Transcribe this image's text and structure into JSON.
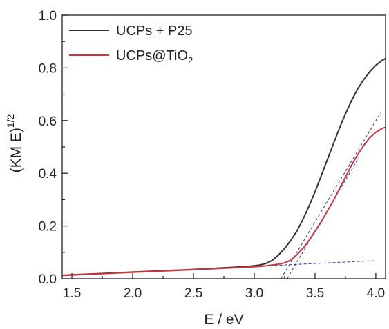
{
  "chart_data": {
    "type": "line",
    "title": "",
    "xlabel": "E / eV",
    "ylabel": {
      "base": "(KM E)",
      "sup": "1/2"
    },
    "xlim": [
      1.42,
      4.08
    ],
    "ylim": [
      0.0,
      1.0
    ],
    "x_ticks": [
      1.5,
      2.0,
      2.5,
      3.0,
      3.5,
      4.0
    ],
    "x_tick_labels": [
      "1.5",
      "2.0",
      "2.5",
      "3.0",
      "3.5",
      "4.0"
    ],
    "y_ticks": [
      0.0,
      0.2,
      0.4,
      0.6,
      0.8,
      1.0
    ],
    "y_tick_labels": [
      "0.0",
      "0.2",
      "0.4",
      "0.6",
      "0.8",
      "1.0"
    ],
    "grid": false,
    "legend_position": "top-left",
    "series": [
      {
        "name": "UCPs + P25",
        "legend": {
          "base": "UCPs + P25",
          "sub": ""
        },
        "color": "#333333",
        "x": [
          1.42,
          2.0,
          2.5,
          2.9,
          3.0,
          3.05,
          3.1,
          3.15,
          3.2,
          3.25,
          3.3,
          3.35,
          3.4,
          3.45,
          3.5,
          3.55,
          3.6,
          3.65,
          3.7,
          3.75,
          3.8,
          3.85,
          3.9,
          3.95,
          4.0,
          4.05,
          4.08
        ],
        "y": [
          0.013,
          0.025,
          0.035,
          0.045,
          0.049,
          0.052,
          0.058,
          0.07,
          0.09,
          0.115,
          0.145,
          0.18,
          0.225,
          0.275,
          0.33,
          0.39,
          0.45,
          0.51,
          0.57,
          0.625,
          0.675,
          0.72,
          0.755,
          0.785,
          0.81,
          0.828,
          0.835
        ]
      },
      {
        "name": "UCPs@TiO2",
        "legend": {
          "base": "UCPs@TiO",
          "sub": "2"
        },
        "color": "#d0333f",
        "x": [
          1.42,
          2.0,
          2.5,
          3.0,
          3.1,
          3.2,
          3.25,
          3.3,
          3.35,
          3.4,
          3.45,
          3.5,
          3.55,
          3.6,
          3.65,
          3.7,
          3.75,
          3.8,
          3.85,
          3.9,
          3.95,
          4.0,
          4.05,
          4.08
        ],
        "y": [
          0.012,
          0.024,
          0.034,
          0.045,
          0.049,
          0.055,
          0.06,
          0.07,
          0.09,
          0.115,
          0.145,
          0.18,
          0.215,
          0.255,
          0.295,
          0.34,
          0.385,
          0.43,
          0.47,
          0.505,
          0.535,
          0.555,
          0.57,
          0.575
        ]
      }
    ],
    "fit_lines": [
      {
        "color": "#2233aa",
        "x": [
          3.22,
          4.04
        ],
        "y": [
          0.0,
          0.63
        ]
      },
      {
        "color": "#2233aa",
        "x": [
          3.27,
          3.86
        ],
        "y": [
          0.0,
          0.46
        ]
      },
      {
        "color": "#2233aa",
        "x": [
          1.42,
          3.98
        ],
        "y": [
          0.012,
          0.068
        ]
      }
    ]
  }
}
